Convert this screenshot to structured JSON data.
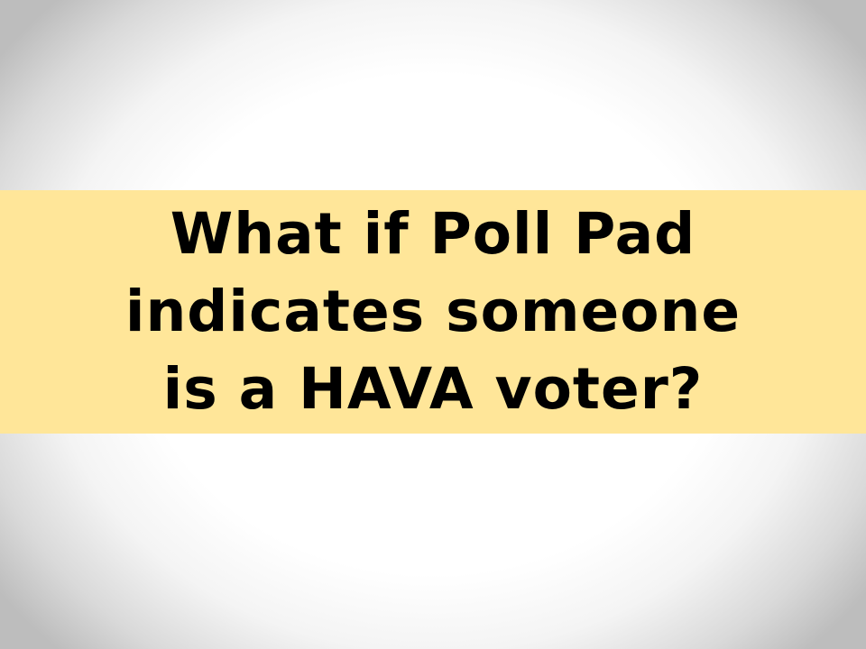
{
  "slide": {
    "banner_color": "#ffe699",
    "title_lines": [
      "What if Poll Pad",
      "indicates someone",
      "is a HAVA voter?"
    ]
  }
}
